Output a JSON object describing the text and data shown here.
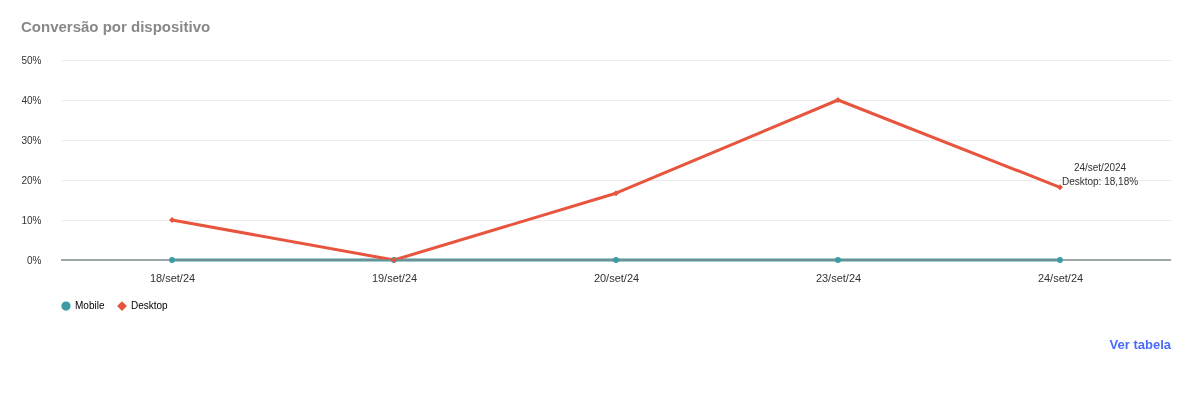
{
  "chart_data": {
    "type": "line",
    "title": "Conversão por dispositivo",
    "categories": [
      "18/set/24",
      "19/set/24",
      "20/set/24",
      "23/set/24",
      "24/set/24"
    ],
    "series": [
      {
        "name": "Mobile",
        "color": "#3d9ba3",
        "marker": "circle",
        "values": [
          0,
          0,
          0,
          0,
          0
        ]
      },
      {
        "name": "Desktop",
        "color": "#e8553e",
        "marker": "diamond",
        "values": [
          10,
          0,
          16.7,
          40,
          18.18
        ]
      }
    ],
    "ylim": [
      0,
      50
    ],
    "yticks": [
      {
        "value": 0,
        "label": "0%"
      },
      {
        "value": 10,
        "label": "10%"
      },
      {
        "value": 20,
        "label": "20%"
      },
      {
        "value": 30,
        "label": "30%"
      },
      {
        "value": 40,
        "label": "40%"
      },
      {
        "value": 50,
        "label": "50%"
      }
    ],
    "grid": "y",
    "legend": "bottom",
    "line_style": "solid",
    "annotations": [
      {
        "text": "24/set/2024\nDesktop: 18,18%",
        "x": "24/set/24",
        "y": 18.18
      },
      "Ver tabela"
    ]
  }
}
